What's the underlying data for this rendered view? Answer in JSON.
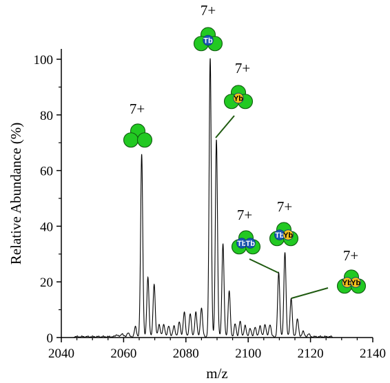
{
  "colors": {
    "trace": "#000000",
    "callout": "#1f5a10",
    "cluster": "#22c922",
    "cluster_edge": "#0f5a0f",
    "tb": "#1a56b3",
    "yb": "#f5c21b"
  },
  "chart_data": {
    "type": "line",
    "title": "",
    "xlabel": "m/z",
    "ylabel": "Relative Abundance (%)",
    "xlim": [
      2040,
      2140
    ],
    "ylim": [
      0,
      105
    ],
    "xticks": [
      2040,
      2060,
      2080,
      2100,
      2120,
      2140
    ],
    "yticks": [
      0,
      20,
      40,
      60,
      80,
      100
    ],
    "x_tick_labels": [
      "2040",
      "2060",
      "2080",
      "2100",
      "2120",
      "2140"
    ],
    "y_tick_labels": [
      "0",
      "20",
      "40",
      "60",
      "80",
      "100"
    ],
    "grid": false,
    "legend": "none",
    "baseline_noise_range": [
      2044,
      2127
    ],
    "peaks": [
      {
        "x": 2057.8,
        "y": 0.8
      },
      {
        "x": 2059.5,
        "y": 1.2
      },
      {
        "x": 2061.4,
        "y": 1.5
      },
      {
        "x": 2063.8,
        "y": 3.5
      },
      {
        "x": 2065.8,
        "y": 65.5
      },
      {
        "x": 2067.8,
        "y": 21.5
      },
      {
        "x": 2069.8,
        "y": 19.0
      },
      {
        "x": 2071.4,
        "y": 4.5
      },
      {
        "x": 2072.9,
        "y": 4.5
      },
      {
        "x": 2074.5,
        "y": 4.0
      },
      {
        "x": 2076.2,
        "y": 4.0
      },
      {
        "x": 2077.9,
        "y": 5.5
      },
      {
        "x": 2079.5,
        "y": 9.0
      },
      {
        "x": 2081.4,
        "y": 8.5
      },
      {
        "x": 2083.2,
        "y": 9.0
      },
      {
        "x": 2085.0,
        "y": 10.5
      },
      {
        "x": 2087.8,
        "y": 100.0
      },
      {
        "x": 2089.8,
        "y": 71.0
      },
      {
        "x": 2091.9,
        "y": 33.5
      },
      {
        "x": 2093.9,
        "y": 16.5
      },
      {
        "x": 2095.8,
        "y": 4.5
      },
      {
        "x": 2097.4,
        "y": 5.5
      },
      {
        "x": 2099.0,
        "y": 4.0
      },
      {
        "x": 2100.6,
        "y": 3.0
      },
      {
        "x": 2102.2,
        "y": 3.5
      },
      {
        "x": 2103.8,
        "y": 4.0
      },
      {
        "x": 2105.4,
        "y": 4.5
      },
      {
        "x": 2107.0,
        "y": 4.5
      },
      {
        "x": 2109.8,
        "y": 23.0
      },
      {
        "x": 2111.8,
        "y": 30.5
      },
      {
        "x": 2113.8,
        "y": 14.0
      },
      {
        "x": 2115.8,
        "y": 6.5
      },
      {
        "x": 2117.6,
        "y": 2.0
      },
      {
        "x": 2119.4,
        "y": 1.0
      }
    ],
    "annotations": [
      {
        "charge": "7+",
        "labels": [],
        "callout": false,
        "at": [
          2065.8,
          65.5
        ]
      },
      {
        "charge": "7+",
        "labels": [
          "Tb"
        ],
        "callout": false,
        "at": [
          2087.8,
          100.0
        ]
      },
      {
        "charge": "7+",
        "labels": [
          "Yb"
        ],
        "callout": true,
        "at": [
          2089.8,
          71.0
        ]
      },
      {
        "charge": "7+",
        "labels": [
          "Tb",
          "Tb"
        ],
        "callout": true,
        "at": [
          2109.8,
          23.0
        ]
      },
      {
        "charge": "7+",
        "labels": [
          "Tb",
          "Yb"
        ],
        "callout": false,
        "at": [
          2111.8,
          30.5
        ]
      },
      {
        "charge": "7+",
        "labels": [
          "Yb",
          "Yb"
        ],
        "callout": true,
        "at": [
          2113.8,
          14.0
        ]
      }
    ]
  }
}
